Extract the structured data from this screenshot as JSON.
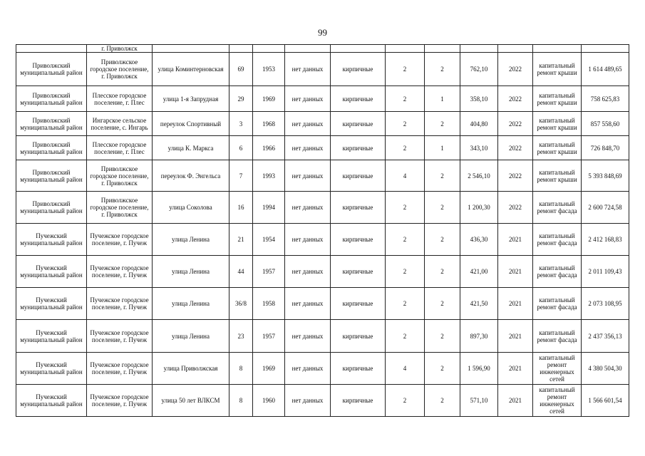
{
  "page_number": "99",
  "top_row": {
    "settlement": "г. Приволжск"
  },
  "rows": [
    {
      "district": "Приволжский муниципальный район",
      "settlement": "Приволжское городское поселение, г. Приволжск",
      "street": "улица Коминтерновская",
      "house": "69",
      "year": "1953",
      "c6": "нет данных",
      "walls": "кирпичные",
      "floors": "2",
      "entrances": "2",
      "area": "762,10",
      "plan_year": "2022",
      "work": "капитальный ремонт крыши",
      "cost": "1 614 489,65"
    },
    {
      "district": "Приволжский муниципальный район",
      "settlement": "Плесское городское поселение, г. Плес",
      "street": "улица 1-я Запрудная",
      "house": "29",
      "year": "1969",
      "c6": "нет данных",
      "walls": "кирпичные",
      "floors": "2",
      "entrances": "1",
      "area": "358,10",
      "plan_year": "2022",
      "work": "капитальный ремонт крыши",
      "cost": "758 625,83"
    },
    {
      "district": "Приволжский муниципальный район",
      "settlement": "Ингарское сельское поселение, с. Ингарь",
      "street": "переулок Спортивный",
      "house": "3",
      "year": "1968",
      "c6": "нет данных",
      "walls": "кирпичные",
      "floors": "2",
      "entrances": "2",
      "area": "404,80",
      "plan_year": "2022",
      "work": "капитальный ремонт крыши",
      "cost": "857 558,60"
    },
    {
      "district": "Приволжский муниципальный район",
      "settlement": "Плесское городское поселение, г. Плес",
      "street": "улица К. Маркса",
      "house": "6",
      "year": "1966",
      "c6": "нет данных",
      "walls": "кирпичные",
      "floors": "2",
      "entrances": "1",
      "area": "343,10",
      "plan_year": "2022",
      "work": "капитальный ремонт крыши",
      "cost": "726 848,70"
    },
    {
      "district": "Приволжский муниципальный район",
      "settlement": "Приволжское городское поселение, г. Приволжск",
      "street": "переулок Ф. Энгельса",
      "house": "7",
      "year": "1993",
      "c6": "нет данных",
      "walls": "кирпичные",
      "floors": "4",
      "entrances": "2",
      "area": "2 546,10",
      "plan_year": "2022",
      "work": "капитальный ремонт крыши",
      "cost": "5 393 848,69"
    },
    {
      "district": "Приволжский муниципальный район",
      "settlement": "Приволжское городское поселение, г. Приволжск",
      "street": "улица Соколова",
      "house": "16",
      "year": "1994",
      "c6": "нет данных",
      "walls": "кирпичные",
      "floors": "2",
      "entrances": "2",
      "area": "1 200,30",
      "plan_year": "2022",
      "work": "капитальный ремонт фасада",
      "cost": "2 600 724,58"
    },
    {
      "district": "Пучежский муниципальный район",
      "settlement": "Пучежское городское поселение, г. Пучеж",
      "street": "улица Ленина",
      "house": "21",
      "year": "1954",
      "c6": "нет данных",
      "walls": "кирпичные",
      "floors": "2",
      "entrances": "2",
      "area": "436,30",
      "plan_year": "2021",
      "work": "капитальный ремонт фасада",
      "cost": "2 412 168,83"
    },
    {
      "district": "Пучежский муниципальный район",
      "settlement": "Пучежское городское поселение, г. Пучеж",
      "street": "улица Ленина",
      "house": "44",
      "year": "1957",
      "c6": "нет данных",
      "walls": "кирпичные",
      "floors": "2",
      "entrances": "2",
      "area": "421,00",
      "plan_year": "2021",
      "work": "капитальный ремонт фасада",
      "cost": "2 011 109,43"
    },
    {
      "district": "Пучежский муниципальный район",
      "settlement": "Пучежское городское поселение, г. Пучеж",
      "street": "улица Ленина",
      "house": "36/8",
      "year": "1958",
      "c6": "нет данных",
      "walls": "кирпичные",
      "floors": "2",
      "entrances": "2",
      "area": "421,50",
      "plan_year": "2021",
      "work": "капитальный ремонт фасада",
      "cost": "2 073 108,95"
    },
    {
      "district": "Пучежский муниципальный район",
      "settlement": "Пучежское городское поселение, г. Пучеж",
      "street": "улица Ленина",
      "house": "23",
      "year": "1957",
      "c6": "нет данных",
      "walls": "кирпичные",
      "floors": "2",
      "entrances": "2",
      "area": "897,30",
      "plan_year": "2021",
      "work": "капитальный ремонт фасада",
      "cost": "2 437 356,13"
    },
    {
      "district": "Пучежский муниципальный район",
      "settlement": "Пучежское городское поселение, г. Пучеж",
      "street": "улица Приволжская",
      "house": "8",
      "year": "1969",
      "c6": "нет данных",
      "walls": "кирпичные",
      "floors": "4",
      "entrances": "2",
      "area": "1 596,90",
      "plan_year": "2021",
      "work": "капитальный ремонт инженерных сетей",
      "cost": "4 380 504,30"
    },
    {
      "district": "Пучежский муниципальный район",
      "settlement": "Пучежское городское поселение, г. Пучеж",
      "street": "улица 50 лет ВЛКСМ",
      "house": "8",
      "year": "1960",
      "c6": "нет данных",
      "walls": "кирпичные",
      "floors": "2",
      "entrances": "2",
      "area": "571,10",
      "plan_year": "2021",
      "work": "капитальный ремонт инженерных сетей",
      "cost": "1 566 601,54"
    }
  ]
}
